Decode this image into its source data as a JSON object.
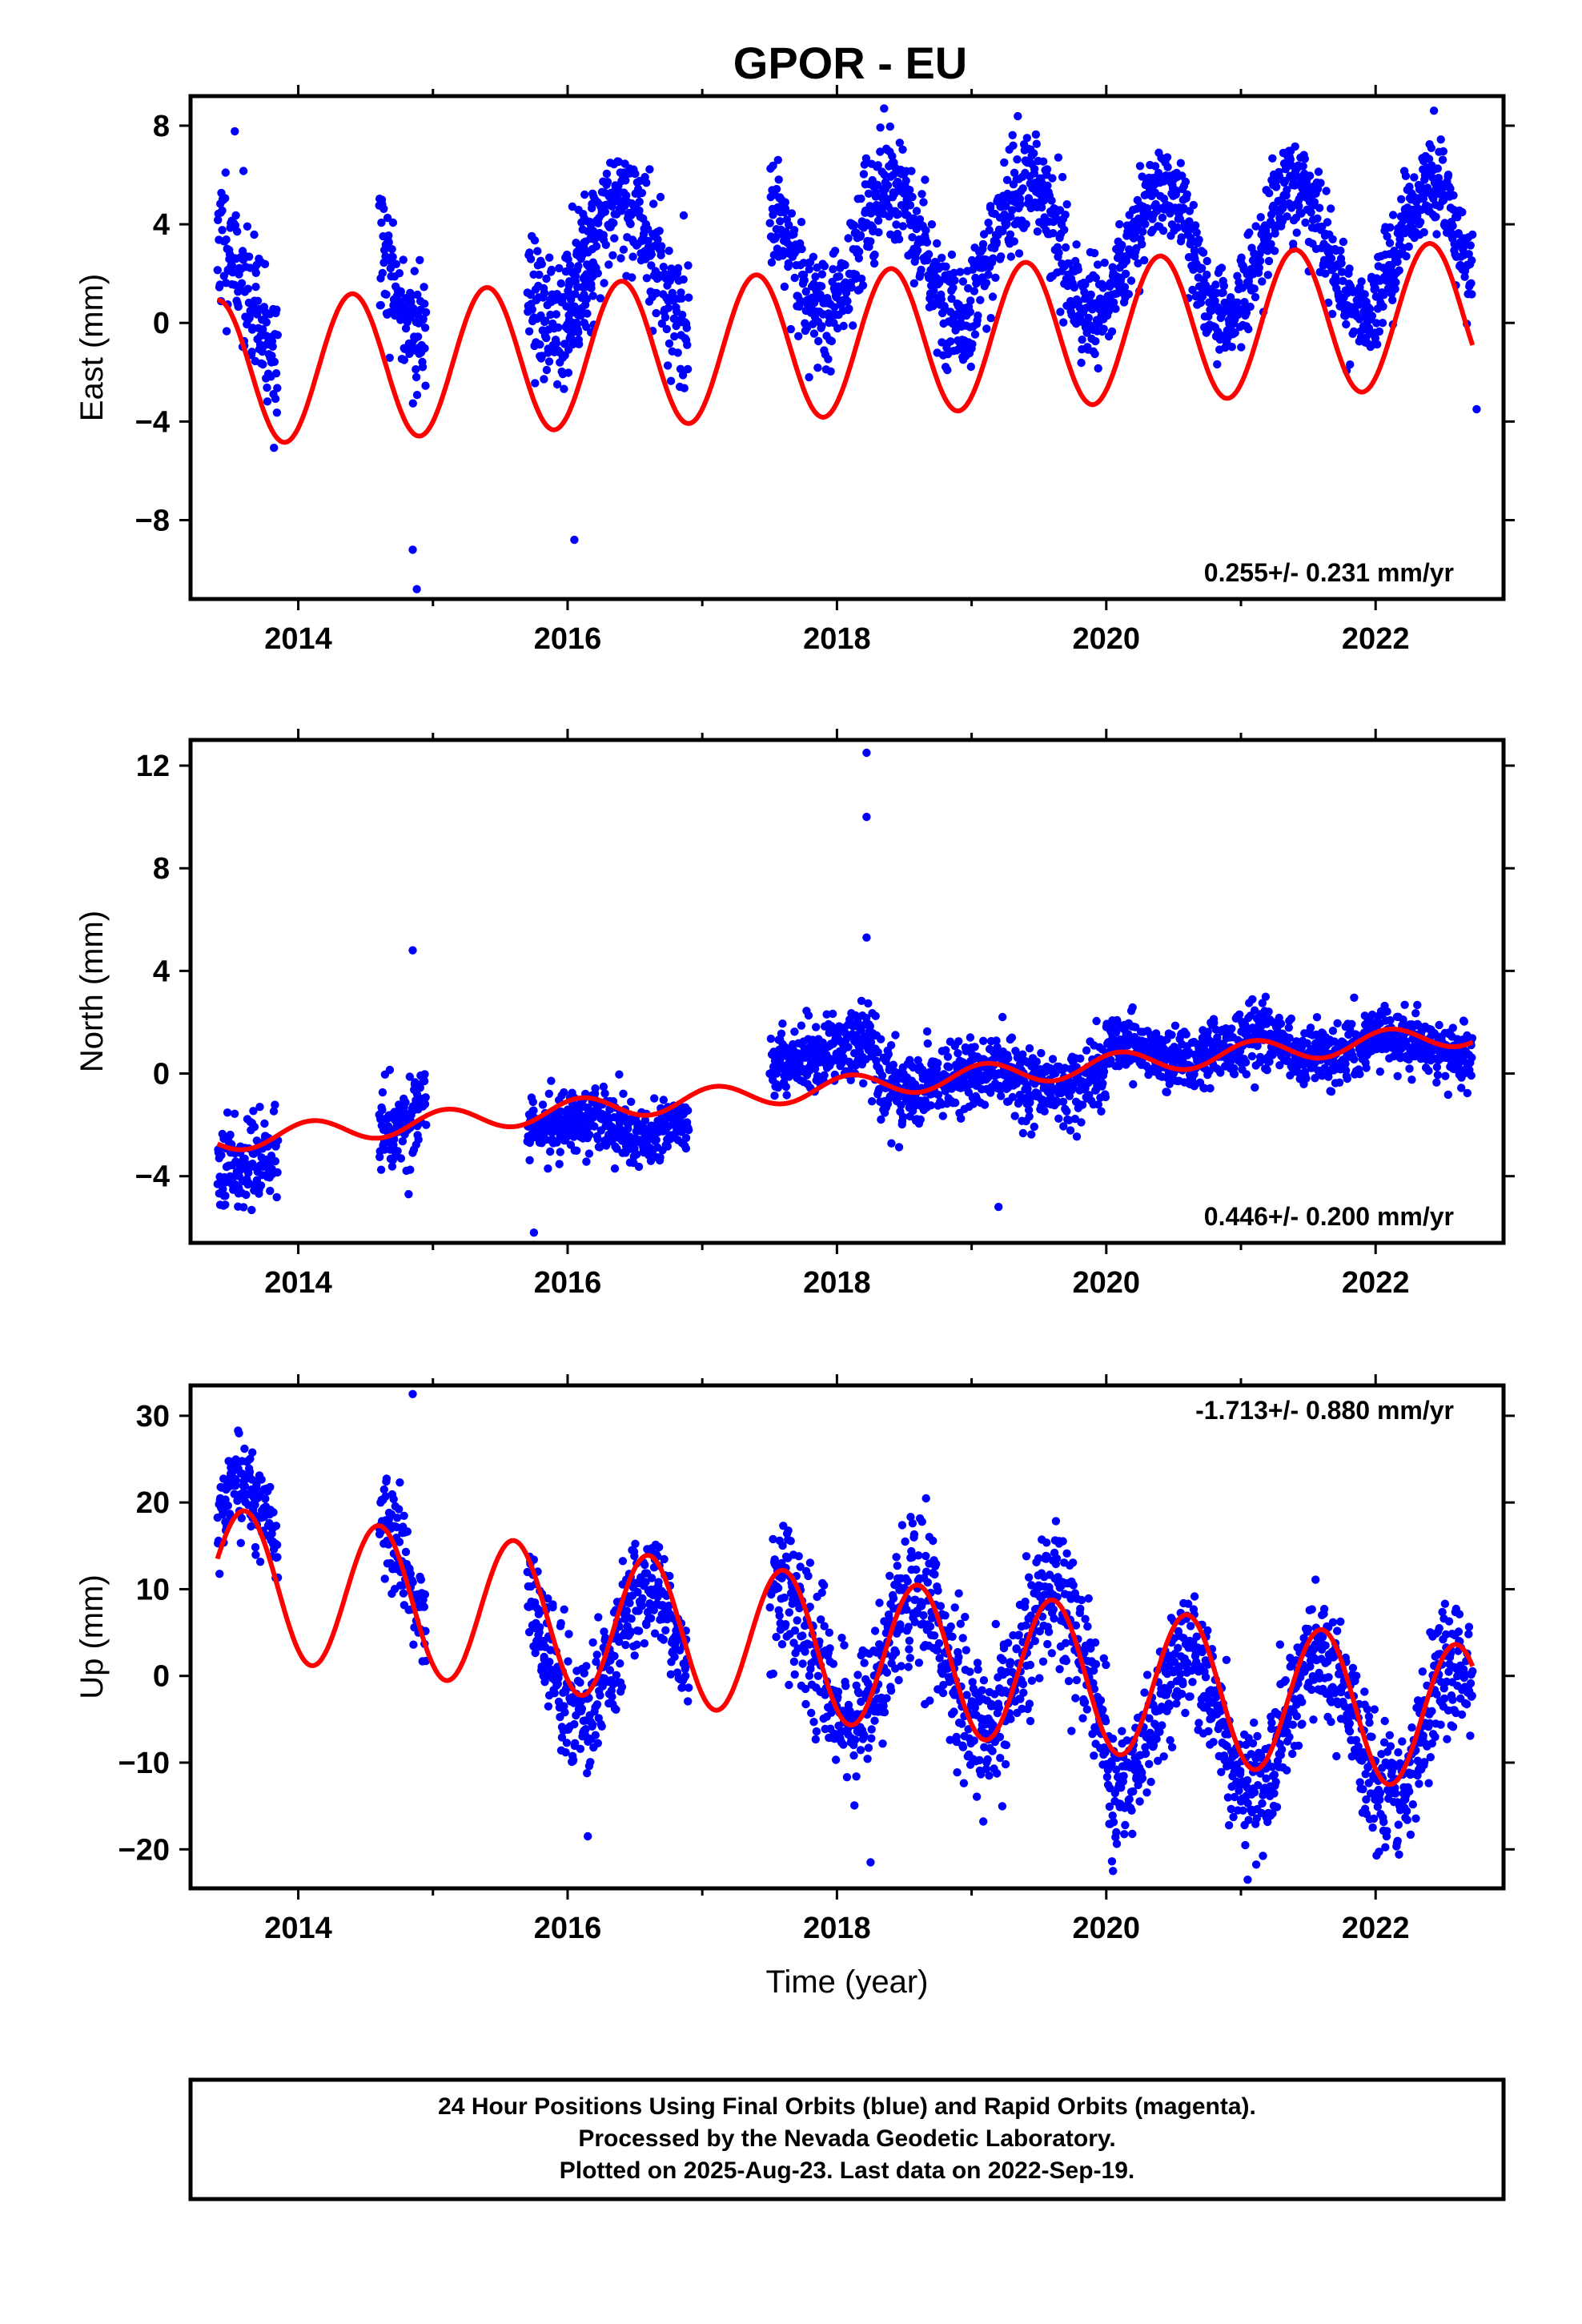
{
  "title": "GPOR - EU",
  "footer": [
    "24 Hour Positions Using Final Orbits (blue) and Rapid Orbits (magenta).",
    "Processed by the Nevada Geodetic Laboratory.",
    "Plotted on 2025-Aug-23. Last data on 2022-Sep-19."
  ],
  "colors": {
    "data": "#0000ff",
    "fit": "#ff0000",
    "frame": "#000000"
  },
  "chart_data": [
    {
      "type": "scatter",
      "ylabel": "East (mm)",
      "xlabel": "",
      "rate_label": "0.255+/- 0.231 mm/yr",
      "rate_position": "bottom-right",
      "xlim": [
        2013.2,
        2022.95
      ],
      "ylim": [
        -11.2,
        9.2
      ],
      "xticks": [
        2014,
        2016,
        2018,
        2020,
        2022
      ],
      "yticks": [
        8,
        4,
        0,
        -4,
        -8
      ],
      "ytick_labels": [
        "8",
        "4",
        "0",
        "−4",
        "−8"
      ],
      "segments": [
        [
          2013.4,
          2013.85,
          1.2,
          2.6
        ],
        [
          2014.6,
          2014.95,
          2.6,
          2.6
        ],
        [
          2015.7,
          2016.2,
          2.7,
          2.6
        ],
        [
          2016.0,
          2016.9,
          2.6,
          2.6
        ],
        [
          2017.5,
          2020.0,
          3.0,
          2.0
        ],
        [
          2020.0,
          2022.72,
          2.6,
          1.7
        ]
      ],
      "outliers": [
        [
          2014.85,
          -9.2
        ],
        [
          2014.88,
          -10.8
        ],
        [
          2016.05,
          -8.8
        ],
        [
          2018.35,
          8.7
        ],
        [
          2022.75,
          -3.5
        ]
      ],
      "fit": {
        "offset": -0.85,
        "rate": 0.255,
        "amplitude": 2.95,
        "phase_peak": 0.4,
        "t0": 2018.0,
        "segments": [
          [
            2013.4,
            2022.72,
            0.6,
            0.13
          ]
        ]
      },
      "seed": 11
    },
    {
      "type": "scatter",
      "ylabel": "North (mm)",
      "xlabel": "",
      "rate_label": "0.446+/- 0.200 mm/yr",
      "rate_position": "bottom-right",
      "xlim": [
        2013.2,
        2022.95
      ],
      "ylim": [
        -6.6,
        13.0
      ],
      "xticks": [
        2014,
        2016,
        2018,
        2020,
        2022
      ],
      "yticks": [
        12,
        8,
        4,
        0,
        -4
      ],
      "ytick_labels": [
        "12",
        "8",
        "4",
        "0",
        "−4"
      ],
      "segments": [
        [
          2013.4,
          2013.85,
          -2.5,
          1.5
        ],
        [
          2014.6,
          2014.95,
          -1.2,
          1.5
        ],
        [
          2015.7,
          2016.9,
          -1.8,
          1.1
        ],
        [
          2017.5,
          2018.3,
          0.8,
          1.3
        ],
        [
          2018.3,
          2020.0,
          -0.4,
          1.3
        ],
        [
          2020.0,
          2022.72,
          0.5,
          1.1
        ]
      ],
      "outliers": [
        [
          2018.22,
          12.5
        ],
        [
          2018.22,
          10.0
        ],
        [
          2018.22,
          5.3
        ],
        [
          2014.85,
          4.8
        ],
        [
          2015.75,
          -6.2
        ],
        [
          2019.2,
          -5.2
        ]
      ],
      "fit": {
        "offset": -0.55,
        "rate": 0.446,
        "amplitude": 0.45,
        "phase_peak": 0.1,
        "t0": 2018.0,
        "segments": [
          [
            2013.4,
            2022.72,
            0.25,
            0.0
          ]
        ]
      },
      "seed": 23
    },
    {
      "type": "scatter",
      "ylabel": "Up (mm)",
      "xlabel": "Time (year)",
      "rate_label": "-1.713+/- 0.880 mm/yr",
      "rate_position": "top-right",
      "xlim": [
        2013.2,
        2022.95
      ],
      "ylim": [
        -24.5,
        33.5
      ],
      "xticks": [
        2014,
        2016,
        2018,
        2020,
        2022
      ],
      "yticks": [
        30,
        20,
        10,
        0,
        -10,
        -20
      ],
      "ytick_labels": [
        "30",
        "20",
        "10",
        "0",
        "−10",
        "−20"
      ],
      "segments": [
        [
          2013.4,
          2013.85,
          12.0,
          5.0
        ],
        [
          2014.6,
          2014.95,
          8.0,
          5.0
        ],
        [
          2015.7,
          2016.9,
          2.0,
          6.0
        ],
        [
          2017.5,
          2020.0,
          2.0,
          7.5
        ],
        [
          2020.0,
          2022.72,
          -4.0,
          6.5
        ]
      ],
      "outliers": [
        [
          2014.85,
          32.5
        ],
        [
          2016.15,
          -18.5
        ],
        [
          2020.05,
          -22.5
        ],
        [
          2021.05,
          -23.5
        ],
        [
          2018.25,
          -21.5
        ]
      ],
      "fit": {
        "offset": 3.0,
        "rate": -1.713,
        "amplitude": 8.5,
        "phase_peak": 0.6,
        "t0": 2018.0,
        "segments": [
          [
            2013.4,
            2022.72,
            0.0,
            0.0
          ]
        ]
      },
      "seed": 37
    }
  ]
}
